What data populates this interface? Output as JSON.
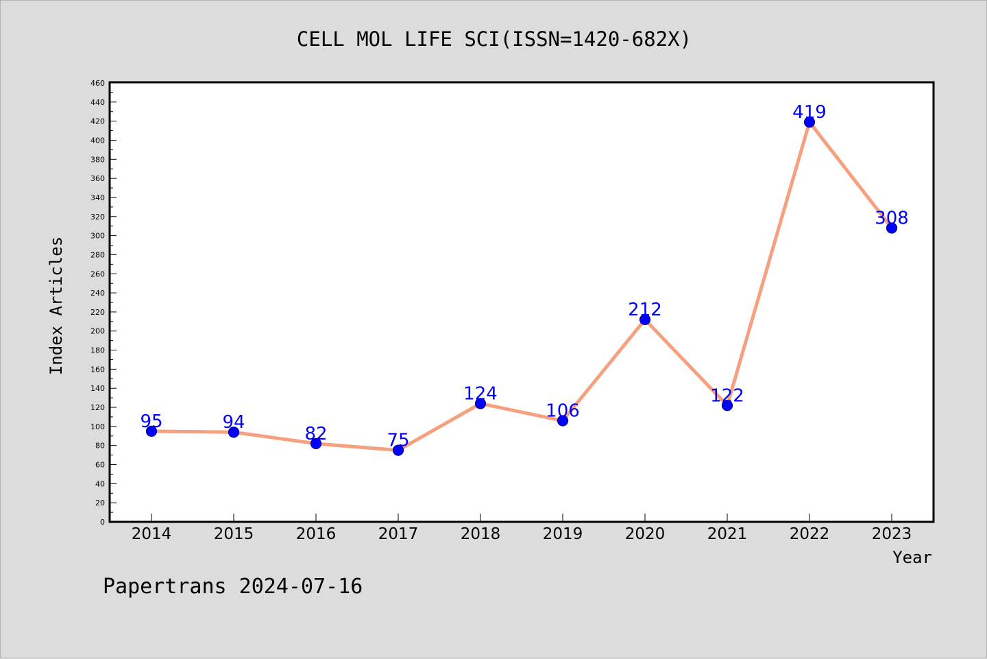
{
  "chart_data": {
    "type": "line",
    "title": "CELL MOL LIFE SCI(ISSN=1420-682X)",
    "xlabel": "Year",
    "ylabel": "Index Articles",
    "categories": [
      "2014",
      "2015",
      "2016",
      "2017",
      "2018",
      "2019",
      "2020",
      "2021",
      "2022",
      "2023"
    ],
    "series": [
      {
        "values": [
          95,
          94,
          82,
          75,
          124,
          106,
          212,
          122,
          419,
          308
        ]
      }
    ],
    "data_labels": [
      "95",
      "94",
      "82",
      "75",
      "124",
      "106",
      "212",
      "122",
      "419",
      "308"
    ],
    "ylim": [
      0,
      460
    ],
    "yticks": [
      0,
      20,
      40,
      60,
      80,
      100,
      120,
      140,
      160,
      180,
      200,
      220,
      240,
      260,
      280,
      300,
      320,
      340,
      360,
      380,
      400,
      420,
      440,
      460
    ],
    "grid": false,
    "legend": "none",
    "colors": {
      "line": "#f5a07e",
      "marker": "#0000ff",
      "marker_edge": "#00008b",
      "data_label": "#0000ff",
      "plot_background": "#ffffff",
      "page_background": "#dcdcdc"
    }
  },
  "footer": {
    "text": "Papertrans 2024-07-16"
  }
}
